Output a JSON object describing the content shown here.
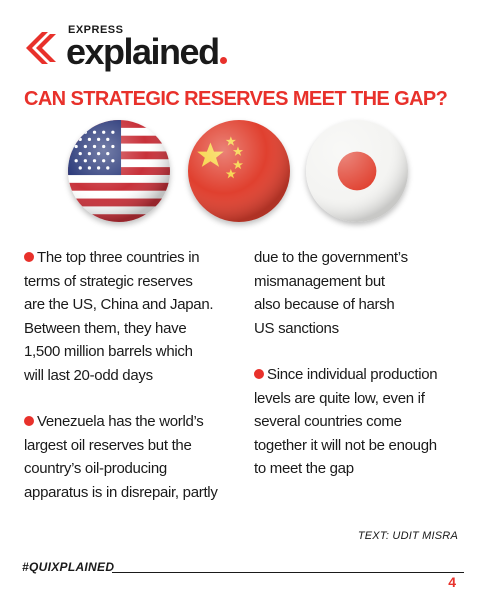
{
  "brand": {
    "top_word": "EXPRESS",
    "main_word": "explained",
    "accent_color": "#e8312b"
  },
  "headline": "CAN STRATEGIC RESERVES MEET THE GAP?",
  "flags": [
    {
      "country": "United States",
      "icon": "us-flag-icon"
    },
    {
      "country": "China",
      "icon": "china-flag-icon"
    },
    {
      "country": "Japan",
      "icon": "japan-flag-icon"
    }
  ],
  "left_column": [
    [
      "The top three countries in",
      "terms of strategic reserves",
      "are the US, China and Japan.",
      "Between them, they have",
      "1,500 million barrels which",
      "will last 20-odd days"
    ],
    [
      "Venezuela has the world’s",
      "largest oil reserves but the",
      "country’s oil-producing",
      "apparatus is in disrepair, partly"
    ]
  ],
  "right_column": [
    [
      "due to the government’s",
      "mismanagement but",
      "also because of harsh",
      "US sanctions"
    ],
    [
      "Since individual production",
      "levels are quite low, even if",
      "several countries come",
      "together it will not be enough",
      "to meet the gap"
    ]
  ],
  "credit": "TEXT: UDIT MISRA",
  "hashtag": "#QUIXPLAINED",
  "page_number": "4"
}
